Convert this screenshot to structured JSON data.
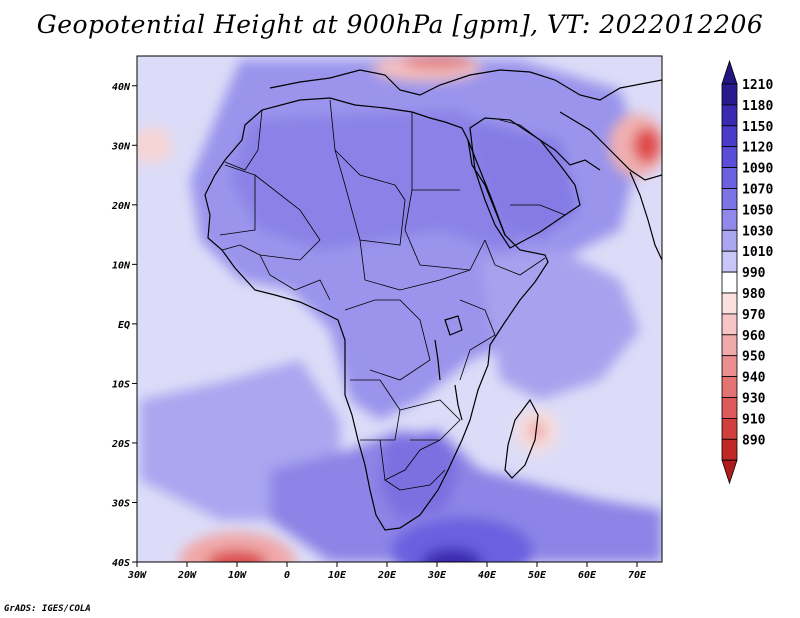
{
  "title": "Geopotential Height at 900hPa [gpm], VT: 2022012206",
  "credit": "GrADS: IGES/COLA",
  "map": {
    "lon_range": [
      -30,
      75
    ],
    "lat_range": [
      -40,
      45
    ],
    "lon_ticks": [
      {
        "value": -30,
        "label": "30W"
      },
      {
        "value": -20,
        "label": "20W"
      },
      {
        "value": -10,
        "label": "10W"
      },
      {
        "value": 0,
        "label": "0"
      },
      {
        "value": 10,
        "label": "10E"
      },
      {
        "value": 20,
        "label": "20E"
      },
      {
        "value": 30,
        "label": "30E"
      },
      {
        "value": 40,
        "label": "40E"
      },
      {
        "value": 50,
        "label": "50E"
      },
      {
        "value": 60,
        "label": "60E"
      },
      {
        "value": 70,
        "label": "70E"
      }
    ],
    "lat_ticks": [
      {
        "value": 40,
        "label": "40N"
      },
      {
        "value": 30,
        "label": "30N"
      },
      {
        "value": 20,
        "label": "20N"
      },
      {
        "value": 10,
        "label": "10N"
      },
      {
        "value": 0,
        "label": "EQ"
      },
      {
        "value": -10,
        "label": "10S"
      },
      {
        "value": -20,
        "label": "20S"
      },
      {
        "value": -30,
        "label": "30S"
      },
      {
        "value": -40,
        "label": "40S"
      }
    ],
    "background_color": "#dcdcf8"
  },
  "colorbar": {
    "levels": [
      {
        "label": "1210",
        "color": "#2a1a90"
      },
      {
        "label": "1180",
        "color": "#3a2ab0"
      },
      {
        "label": "1150",
        "color": "#4a3cc8"
      },
      {
        "label": "1120",
        "color": "#5a4ed8"
      },
      {
        "label": "1090",
        "color": "#6a60e0"
      },
      {
        "label": "1070",
        "color": "#7c74e4"
      },
      {
        "label": "1050",
        "color": "#9088ea"
      },
      {
        "label": "1030",
        "color": "#aaa6f0"
      },
      {
        "label": "1010",
        "color": "#c8c6f6"
      },
      {
        "label": "990",
        "color": "#ffffff"
      },
      {
        "label": "980",
        "color": "#fbe0e0"
      },
      {
        "label": "970",
        "color": "#f6c6c6"
      },
      {
        "label": "960",
        "color": "#f0aaaa"
      },
      {
        "label": "950",
        "color": "#ea8e8e"
      },
      {
        "label": "940",
        "color": "#e47474"
      },
      {
        "label": "930",
        "color": "#dc5a5a"
      },
      {
        "label": "910",
        "color": "#d03e3e"
      },
      {
        "label": "890",
        "color": "#c02828"
      }
    ],
    "top_color": "#241680",
    "bottom_color": "#b01c1c"
  },
  "regions": [
    {
      "name": "southwest-low",
      "lon": -10,
      "lat": -40,
      "rx": 58,
      "ry": 30,
      "color": "#f0a8a8"
    },
    {
      "name": "southwest-low-core",
      "lon": -10,
      "lat": -40,
      "rx": 30,
      "ry": 12,
      "color": "#dc5050"
    },
    {
      "name": "atlantic-ridge-north",
      "lon": -27,
      "lat": 30,
      "rx": 20,
      "ry": 18,
      "color": "#f6d4d4"
    },
    {
      "name": "mediterranean-low",
      "lon": 28,
      "lat": 43,
      "rx": 55,
      "ry": 14,
      "color": "#f4c0c0"
    },
    {
      "name": "mediterranean-low-core",
      "lon": 30,
      "lat": 44,
      "rx": 35,
      "ry": 8,
      "color": "#e48888"
    },
    {
      "name": "arabian-low",
      "lon": 70,
      "lat": 30,
      "rx": 28,
      "ry": 32,
      "color": "#f0b0b0"
    },
    {
      "name": "arabian-low-core",
      "lon": 72,
      "lat": 30,
      "rx": 14,
      "ry": 18,
      "color": "#e04c4c"
    },
    {
      "name": "madagascar-low",
      "lon": 50,
      "lat": -18,
      "rx": 22,
      "ry": 22,
      "color": "#f6dcdc"
    },
    {
      "name": "madagascar-low-core",
      "lon": 50,
      "lat": -18,
      "rx": 8,
      "ry": 10,
      "color": "#f0a6a6"
    },
    {
      "name": "southern-high",
      "lon": 35,
      "lat": -38,
      "rx": 70,
      "ry": 32,
      "color": "#6a60e0"
    },
    {
      "name": "southern-high-core",
      "lon": 33,
      "lat": -40,
      "rx": 30,
      "ry": 14,
      "color": "#3a2ab0"
    }
  ]
}
